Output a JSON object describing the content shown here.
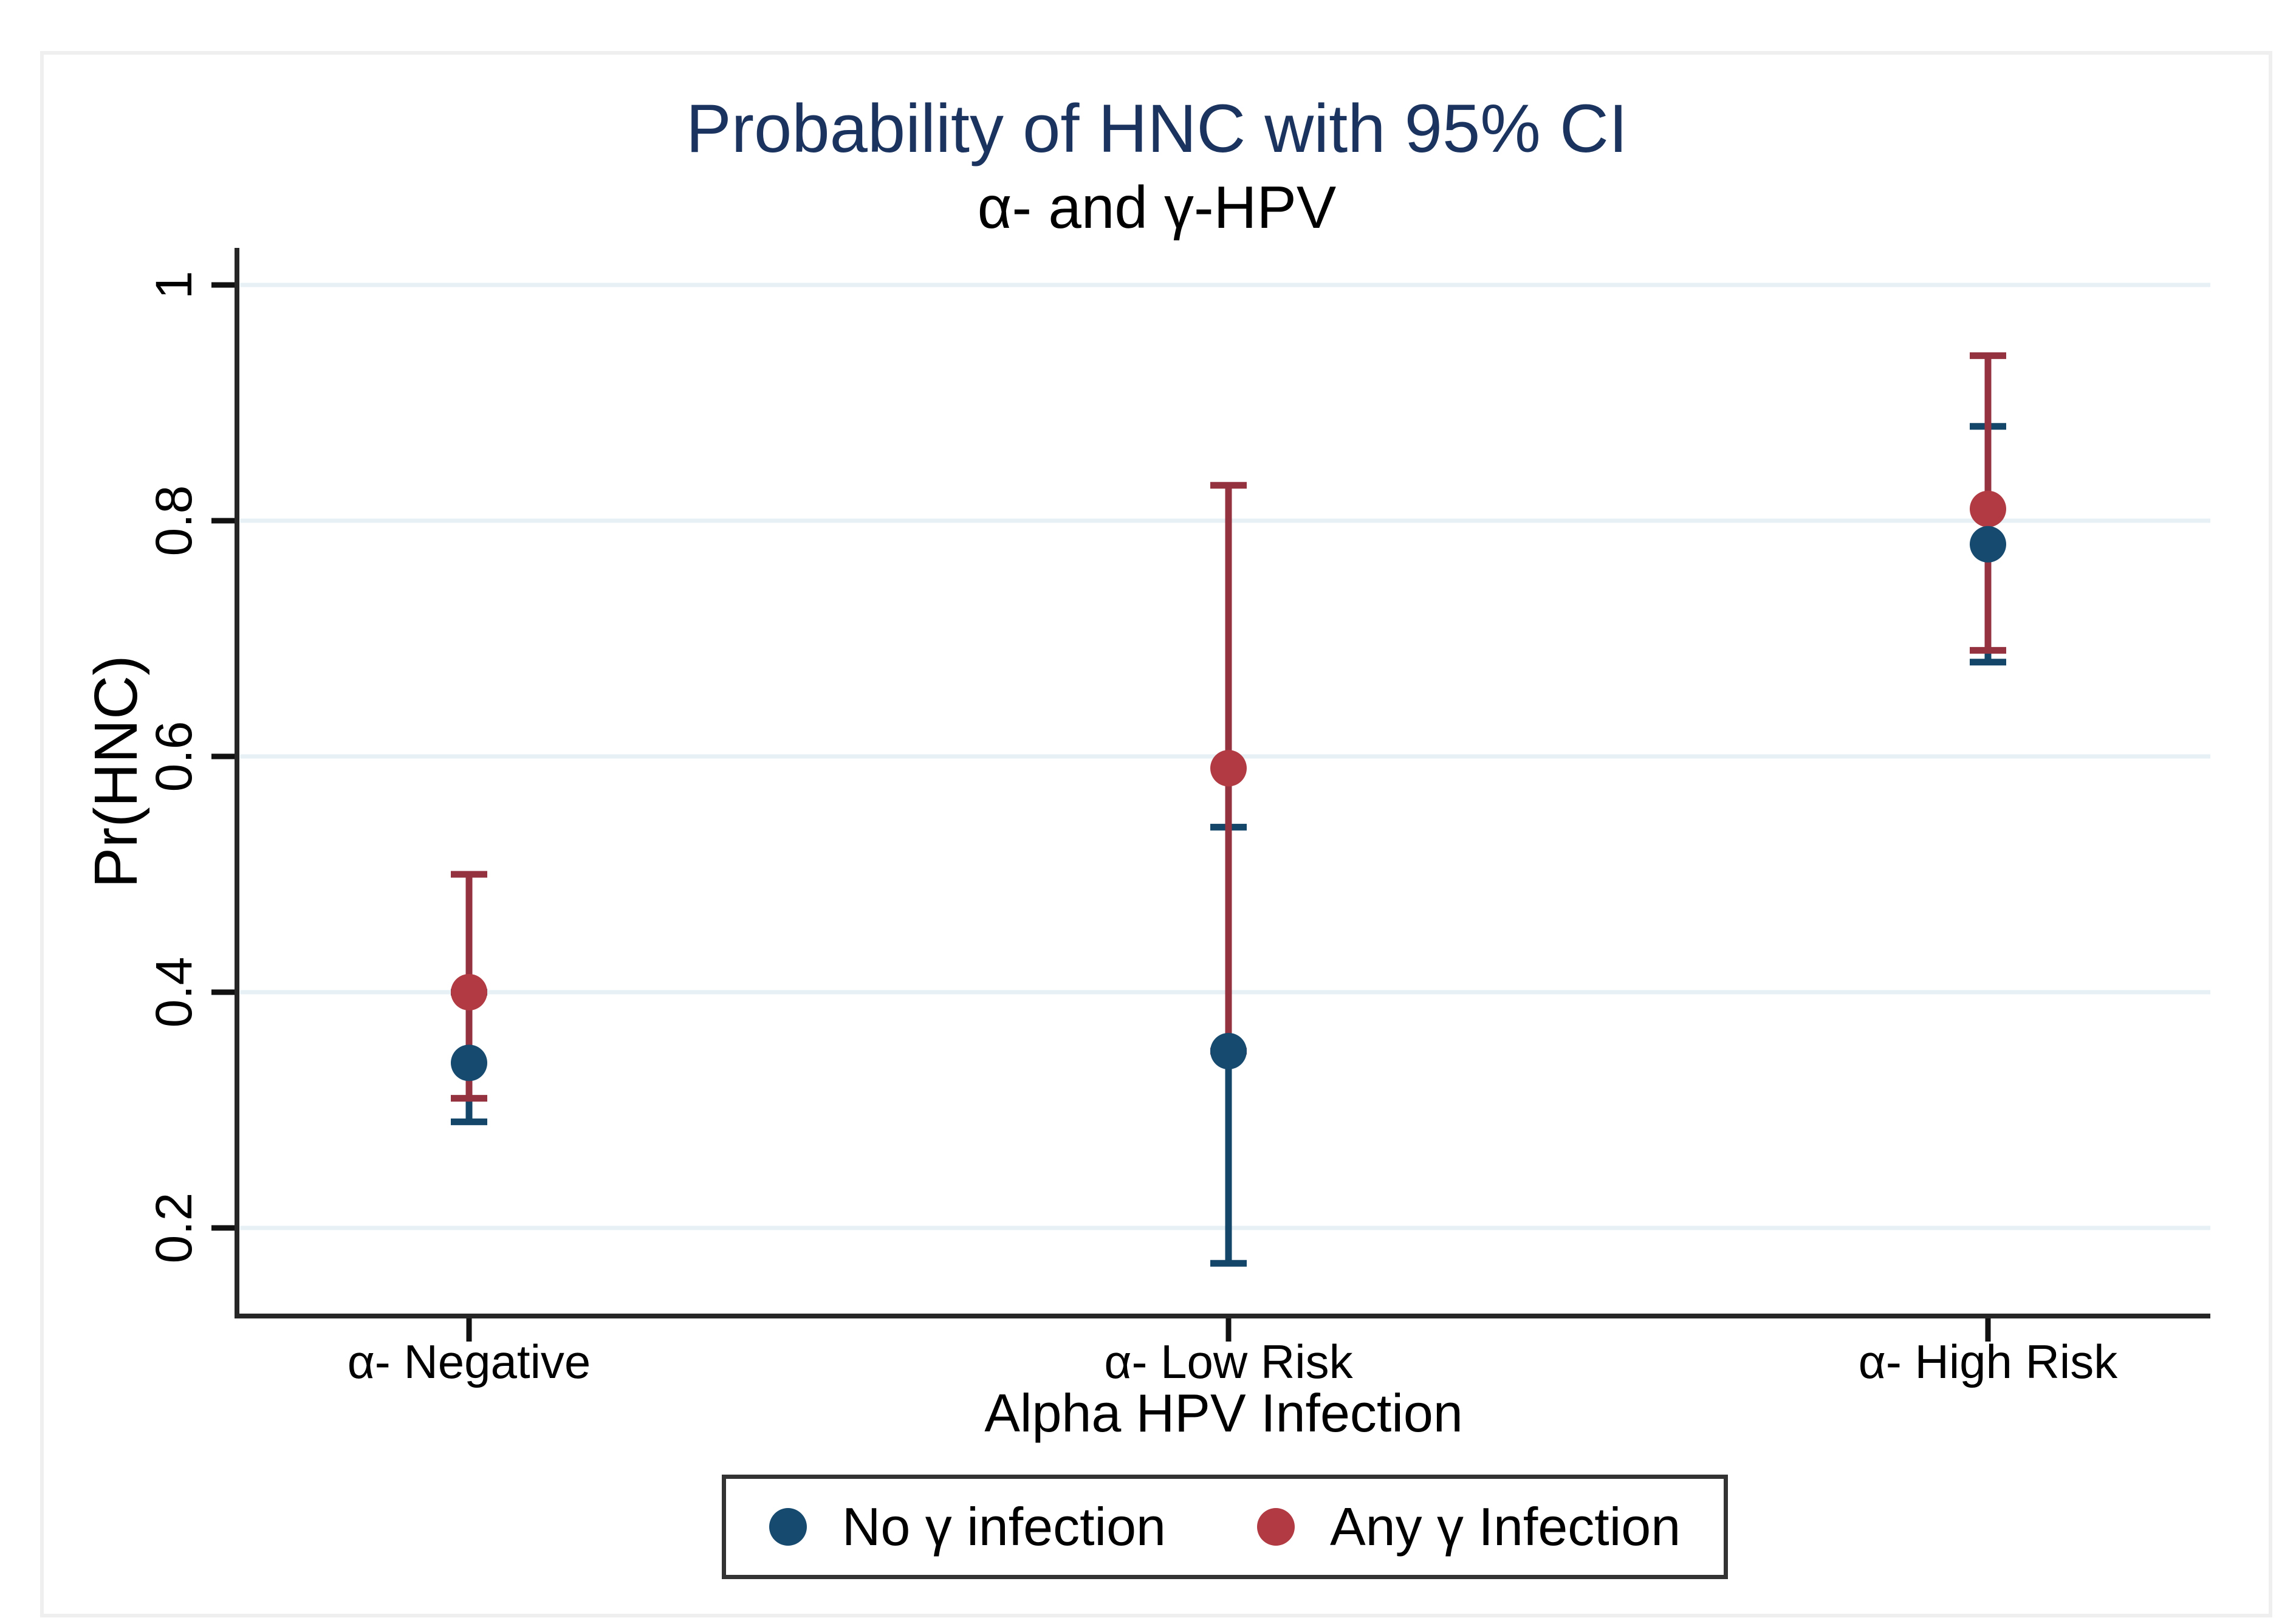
{
  "figure": {
    "title": "Probability of HNC with 95% CI",
    "subtitle": "α- and γ-HPV",
    "title_color": "#1A335F"
  },
  "chart_data": {
    "type": "scatter",
    "title": "Probability of HNC with 95% CI",
    "subtitle": "α- and γ-HPV",
    "xlabel": "Alpha HPV Infection",
    "ylabel": "Pr(HNC)",
    "error_bars": "95% CI",
    "categories": [
      "α- Negative",
      "α- Low Risk",
      "α- High Risk"
    ],
    "yticks": [
      0.2,
      0.4,
      0.6,
      0.8,
      1
    ],
    "ytick_labels": [
      "0.2",
      "0.4",
      "0.6",
      "0.8",
      "1"
    ],
    "ylim": [
      0.125,
      1.03
    ],
    "grid": true,
    "gridline_color": "#E7F0F5",
    "legend_position": "bottom",
    "series": [
      {
        "name": "No γ infection",
        "color": "#174A6F",
        "line_color": "#134668",
        "values": [
          0.34,
          0.35,
          0.78
        ],
        "ci_low": [
          0.29,
          0.17,
          0.68
        ],
        "ci_high": [
          0.4,
          0.54,
          0.88
        ]
      },
      {
        "name": "Any γ Infection",
        "color": "#B13A43",
        "line_color": "#953240",
        "values": [
          0.4,
          0.59,
          0.81
        ],
        "ci_low": [
          0.31,
          0.35,
          0.69
        ],
        "ci_high": [
          0.5,
          0.83,
          0.94
        ]
      }
    ]
  },
  "legend": {
    "items": [
      {
        "label": "No γ infection",
        "color": "#174A6F"
      },
      {
        "label": "Any γ Infection",
        "color": "#B13A43"
      }
    ]
  }
}
